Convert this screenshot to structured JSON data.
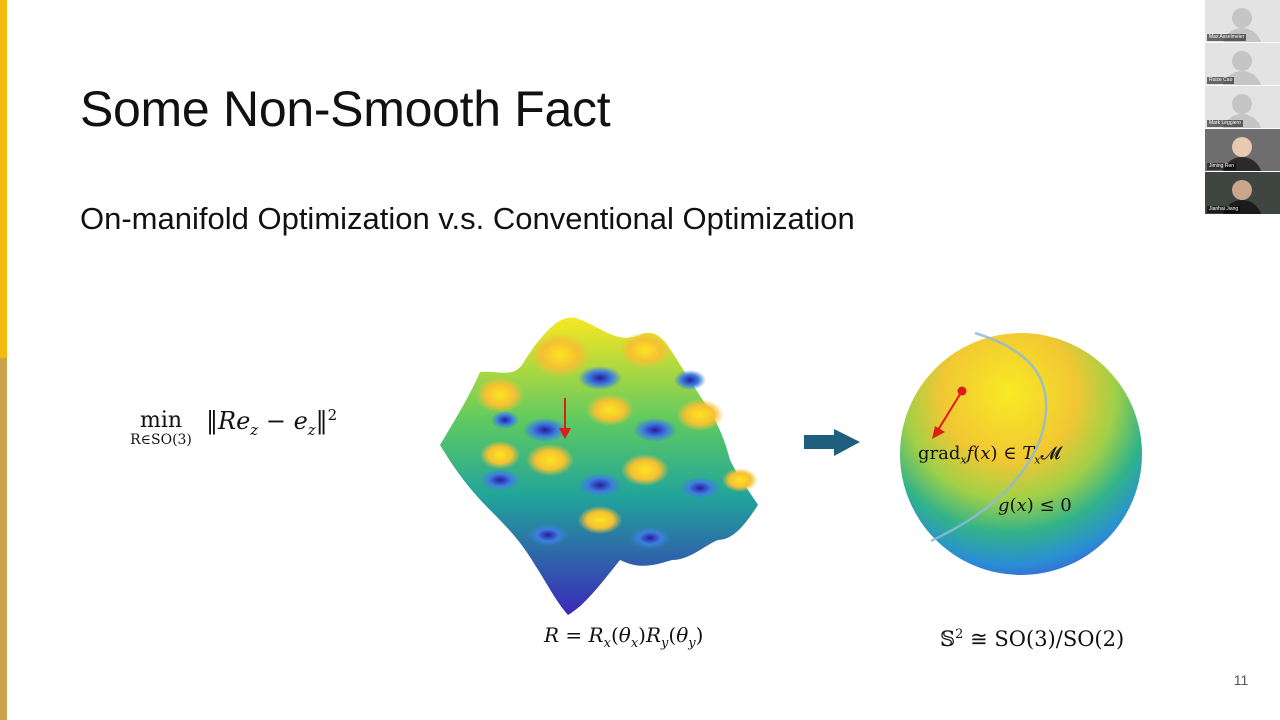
{
  "slide": {
    "title": "Some Non-Smooth Fact",
    "subtitle": "On-manifold Optimization v.s. Conventional Optimization",
    "page_number": "11"
  },
  "math": {
    "min": "min",
    "min_subscript": "R∈SO(3)",
    "param_equation": "R = Rx(θx)Ry(θy)",
    "gradient_label": "gradxf(x) ∈ TxM",
    "constraint_label": "g(x) ≤ 0",
    "isomorphism": "S² ≅ SO(3)/SO(2)"
  },
  "colors": {
    "accent_top": "#f5b90f",
    "accent_bottom": "#c9a44c",
    "arrow": "#1f5f7e",
    "gradient_arrow": "#e01b1b"
  },
  "participants": [
    {
      "name": "Max Asselmeier",
      "video": false
    },
    {
      "name": "Ruize Cao",
      "video": false
    },
    {
      "name": "Mark Leggiero",
      "video": false
    },
    {
      "name": "Jiming Ren",
      "video": true
    },
    {
      "name": "Jianhai Jiang",
      "video": true
    }
  ]
}
